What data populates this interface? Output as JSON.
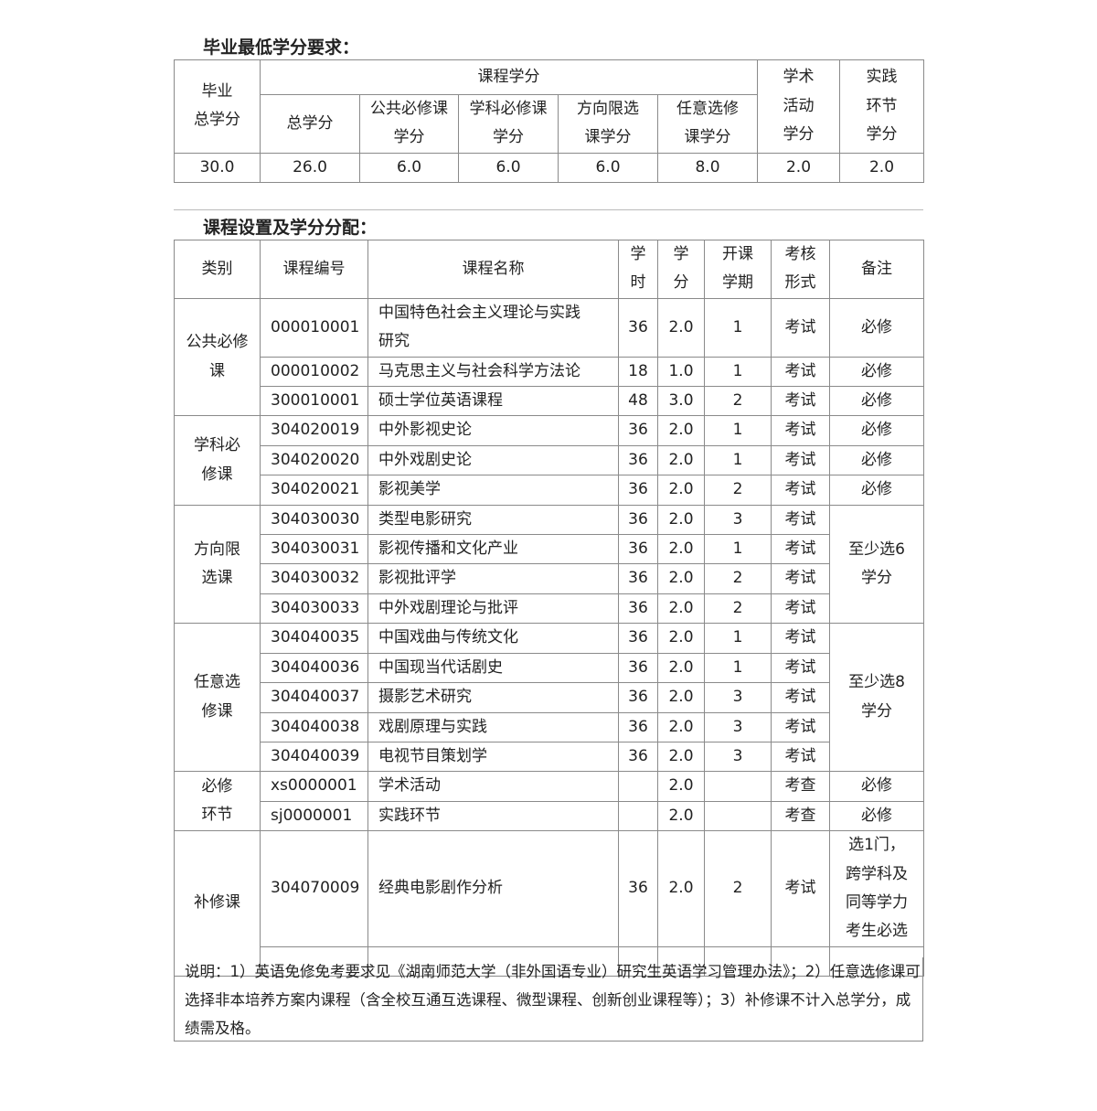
{
  "section1": {
    "title": "毕业最低学分要求：",
    "headers": {
      "grad_total": "毕业\n总学分",
      "course_credits": "课程学分",
      "academic": "学术\n活动\n学分",
      "practice": "实践\n环节\n学分",
      "sub": [
        "总学分",
        "公共必修课\n学分",
        "学科必修课\n学分",
        "方向限选\n课学分",
        "任意选修\n课学分"
      ]
    },
    "values": [
      "30.0",
      "26.0",
      "6.0",
      "6.0",
      "6.0",
      "8.0",
      "2.0",
      "2.0"
    ]
  },
  "section2": {
    "title": "课程设置及学分分配：",
    "headers": [
      "类别",
      "课程编号",
      "课程名称",
      "学\n时",
      "学\n分",
      "开课\n学期",
      "考核\n形式",
      "备注"
    ],
    "groups": [
      {
        "category": "公共必修\n课",
        "note": null,
        "rows": [
          {
            "code": "000010001",
            "name": "中国特色社会主义理论与实践\n研究",
            "hours": "36",
            "credit": "2.0",
            "term": "1",
            "exam": "考试",
            "remark": "必修"
          },
          {
            "code": "000010002",
            "name": "马克思主义与社会科学方法论",
            "hours": "18",
            "credit": "1.0",
            "term": "1",
            "exam": "考试",
            "remark": "必修"
          },
          {
            "code": "300010001",
            "name": "硕士学位英语课程",
            "hours": "48",
            "credit": "3.0",
            "term": "2",
            "exam": "考试",
            "remark": "必修"
          }
        ]
      },
      {
        "category": "学科必\n修课",
        "note": null,
        "rows": [
          {
            "code": "304020019",
            "name": "中外影视史论",
            "hours": "36",
            "credit": "2.0",
            "term": "1",
            "exam": "考试",
            "remark": "必修"
          },
          {
            "code": "304020020",
            "name": "中外戏剧史论",
            "hours": "36",
            "credit": "2.0",
            "term": "1",
            "exam": "考试",
            "remark": "必修"
          },
          {
            "code": "304020021",
            "name": "影视美学",
            "hours": "36",
            "credit": "2.0",
            "term": "2",
            "exam": "考试",
            "remark": "必修"
          }
        ]
      },
      {
        "category": "方向限\n选课",
        "note": "至少选6学分",
        "rows": [
          {
            "code": "304030030",
            "name": "类型电影研究",
            "hours": "36",
            "credit": "2.0",
            "term": "3",
            "exam": "考试"
          },
          {
            "code": "304030031",
            "name": "影视传播和文化产业",
            "hours": "36",
            "credit": "2.0",
            "term": "1",
            "exam": "考试"
          },
          {
            "code": "304030032",
            "name": "影视批评学",
            "hours": "36",
            "credit": "2.0",
            "term": "2",
            "exam": "考试"
          },
          {
            "code": "304030033",
            "name": "中外戏剧理论与批评",
            "hours": "36",
            "credit": "2.0",
            "term": "2",
            "exam": "考试"
          }
        ]
      },
      {
        "category": "任意选\n修课",
        "note": "至少选8学分",
        "rows": [
          {
            "code": "304040035",
            "name": "中国戏曲与传统文化",
            "hours": "36",
            "credit": "2.0",
            "term": "1",
            "exam": "考试"
          },
          {
            "code": "304040036",
            "name": "中国现当代话剧史",
            "hours": "36",
            "credit": "2.0",
            "term": "1",
            "exam": "考试"
          },
          {
            "code": "304040037",
            "name": "摄影艺术研究",
            "hours": "36",
            "credit": "2.0",
            "term": "3",
            "exam": "考试"
          },
          {
            "code": "304040038",
            "name": "戏剧原理与实践",
            "hours": "36",
            "credit": "2.0",
            "term": "3",
            "exam": "考试"
          },
          {
            "code": "304040039",
            "name": "电视节目策划学",
            "hours": "36",
            "credit": "2.0",
            "term": "3",
            "exam": "考试"
          }
        ]
      },
      {
        "category": "必修\n环节",
        "note": null,
        "rows": [
          {
            "code": "xs0000001",
            "name": "学术活动",
            "hours": "",
            "credit": "2.0",
            "term": "",
            "exam": "考查",
            "remark": "必修"
          },
          {
            "code": "sj0000001",
            "name": "实践环节",
            "hours": "",
            "credit": "2.0",
            "term": "",
            "exam": "考查",
            "remark": "必修"
          }
        ]
      },
      {
        "category": "补修课",
        "note": null,
        "rows": [
          {
            "code": "304070009",
            "name": "经典电影剧作分析",
            "hours": "36",
            "credit": "2.0",
            "term": "2",
            "exam": "考试",
            "remark": "选1门，跨学科及同等学力考生必选",
            "tall": true
          },
          {
            "code": "",
            "name": "",
            "hours": "",
            "credit": "",
            "term": "",
            "exam": "",
            "remark": ""
          }
        ]
      }
    ],
    "footnote": "说明：1）英语免修免考要求见《湖南师范大学（非外国语专业）研究生英语学习管理办法》；2）任意选修课可选择非本培养方案内课程（含全校互通互选课程、微型课程、创新创业课程等）；3）补修课不计入总学分，成绩需及格。"
  }
}
